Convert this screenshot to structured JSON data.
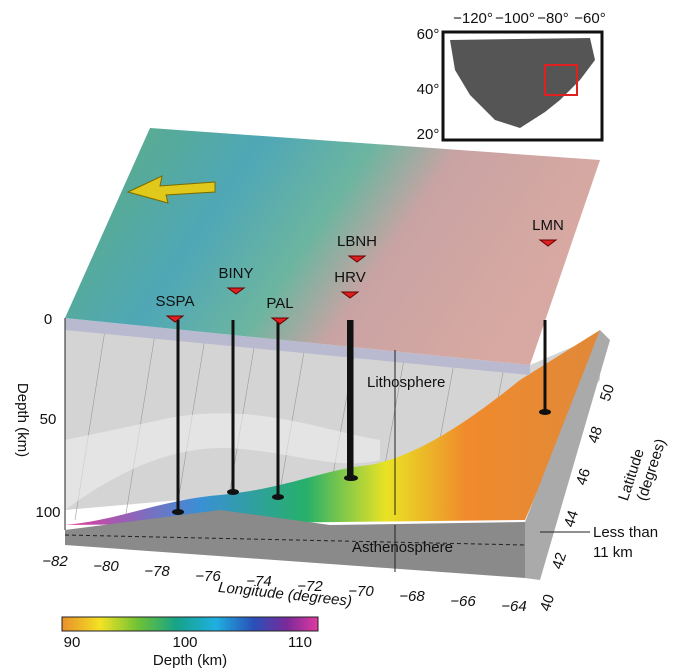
{
  "map": {
    "stations": [
      {
        "label": "SSPA"
      },
      {
        "label": "BINY"
      },
      {
        "label": "PAL"
      },
      {
        "label": "LBNH"
      },
      {
        "label": "HRV"
      },
      {
        "label": "LMN"
      }
    ]
  },
  "labels": {
    "lithosphere": "Lithosphere",
    "asthenosphere": "Asthenosphere",
    "annotation": [
      "Less than",
      "11 km"
    ]
  },
  "depth_axis": {
    "title": "Depth (km)",
    "ticks": [
      "0",
      "50",
      "100"
    ]
  },
  "longitude_axis": {
    "title": "Longitude (degrees)",
    "ticks": [
      "−82",
      "−80",
      "−78",
      "−76",
      "−74",
      "−72",
      "−70",
      "−68",
      "−66",
      "−64"
    ]
  },
  "latitude_axis": {
    "title": [
      "Latitude",
      "(degrees)"
    ],
    "ticks": [
      "40",
      "42",
      "44",
      "46",
      "48",
      "50"
    ]
  },
  "colorbar": {
    "title": "Depth (km)",
    "ticks": [
      "90",
      "100",
      "110"
    ]
  },
  "inset": {
    "lon_ticks": [
      "−120°",
      "−100°",
      "−80°",
      "−60°"
    ],
    "lat_ticks": [
      "60°",
      "40°",
      "20°"
    ]
  }
}
